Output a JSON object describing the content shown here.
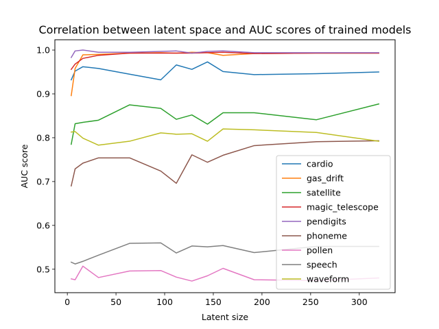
{
  "chart_data": {
    "type": "line",
    "title": "Correlation between latent space and AUC scores of trained models",
    "xlabel": "Latent size",
    "ylabel": "AUC score",
    "xlim": [
      -12.8,
      336.8
    ],
    "ylim": [
      0.4465,
      1.0235
    ],
    "xticks": [
      0,
      50,
      100,
      150,
      200,
      250,
      300
    ],
    "yticks": [
      0.5,
      0.6,
      0.7,
      0.8,
      0.9,
      1.0
    ],
    "xtick_labels": [
      "0",
      "50",
      "100",
      "150",
      "200",
      "250",
      "300"
    ],
    "ytick_labels": [
      "0.5",
      "0.6",
      "0.7",
      "0.8",
      "0.9",
      "1.0"
    ],
    "grid": false,
    "legend_position": "lower-right",
    "series": [
      {
        "name": "cardio",
        "color": "#1f77b4",
        "x": [
          4,
          8,
          16,
          32,
          64,
          96,
          112,
          128,
          144,
          160,
          192,
          256,
          320
        ],
        "y": [
          0.932,
          0.952,
          0.962,
          0.958,
          0.945,
          0.932,
          0.966,
          0.956,
          0.973,
          0.951,
          0.944,
          0.946,
          0.95
        ]
      },
      {
        "name": "gas_drift",
        "color": "#ff7f0e",
        "x": [
          4,
          8,
          16,
          32,
          64,
          96,
          112,
          128,
          144,
          160,
          192,
          256,
          320
        ],
        "y": [
          0.896,
          0.958,
          0.989,
          0.99,
          0.993,
          0.994,
          0.993,
          0.995,
          0.994,
          0.988,
          0.992,
          0.993,
          0.993
        ]
      },
      {
        "name": "satellite",
        "color": "#2ca02c",
        "x": [
          4,
          8,
          16,
          32,
          64,
          96,
          112,
          128,
          144,
          160,
          192,
          256,
          320
        ],
        "y": [
          0.785,
          0.832,
          0.835,
          0.84,
          0.875,
          0.867,
          0.842,
          0.852,
          0.831,
          0.857,
          0.857,
          0.841,
          0.877
        ]
      },
      {
        "name": "magic_telescope",
        "color": "#d62728",
        "x": [
          4,
          8,
          16,
          32,
          64,
          96,
          112,
          128,
          144,
          160,
          192,
          256,
          320
        ],
        "y": [
          0.956,
          0.968,
          0.981,
          0.988,
          0.993,
          0.993,
          0.993,
          0.993,
          0.994,
          0.995,
          0.992,
          0.993,
          0.993
        ]
      },
      {
        "name": "pendigits",
        "color": "#9467bd",
        "x": [
          4,
          8,
          16,
          32,
          64,
          96,
          112,
          128,
          144,
          160,
          192,
          256,
          320
        ],
        "y": [
          0.983,
          0.998,
          1.0,
          0.995,
          0.995,
          0.997,
          0.998,
          0.993,
          0.997,
          0.998,
          0.994,
          0.994,
          0.994
        ]
      },
      {
        "name": "phoneme",
        "color": "#8c564b",
        "x": [
          4,
          8,
          16,
          32,
          64,
          96,
          112,
          128,
          144,
          160,
          192,
          256,
          320
        ],
        "y": [
          0.69,
          0.729,
          0.742,
          0.754,
          0.754,
          0.724,
          0.696,
          0.761,
          0.744,
          0.76,
          0.782,
          0.791,
          0.793
        ]
      },
      {
        "name": "pollen",
        "color": "#e377c2",
        "x": [
          4,
          8,
          16,
          32,
          64,
          96,
          112,
          128,
          144,
          160,
          192,
          256,
          320
        ],
        "y": [
          0.478,
          0.476,
          0.507,
          0.481,
          0.496,
          0.497,
          0.482,
          0.473,
          0.485,
          0.502,
          0.476,
          0.474,
          0.48
        ]
      },
      {
        "name": "speech",
        "color": "#7f7f7f",
        "x": [
          4,
          8,
          16,
          32,
          64,
          96,
          112,
          128,
          144,
          160,
          192,
          256,
          320
        ],
        "y": [
          0.516,
          0.512,
          0.518,
          0.532,
          0.559,
          0.56,
          0.537,
          0.553,
          0.551,
          0.554,
          0.538,
          0.552,
          0.552
        ]
      },
      {
        "name": "waveform",
        "color": "#bcbd22",
        "x": [
          4,
          8,
          16,
          32,
          64,
          96,
          112,
          128,
          144,
          160,
          192,
          256,
          320
        ],
        "y": [
          0.813,
          0.814,
          0.799,
          0.783,
          0.792,
          0.811,
          0.808,
          0.809,
          0.792,
          0.82,
          0.818,
          0.812,
          0.792
        ]
      }
    ]
  }
}
